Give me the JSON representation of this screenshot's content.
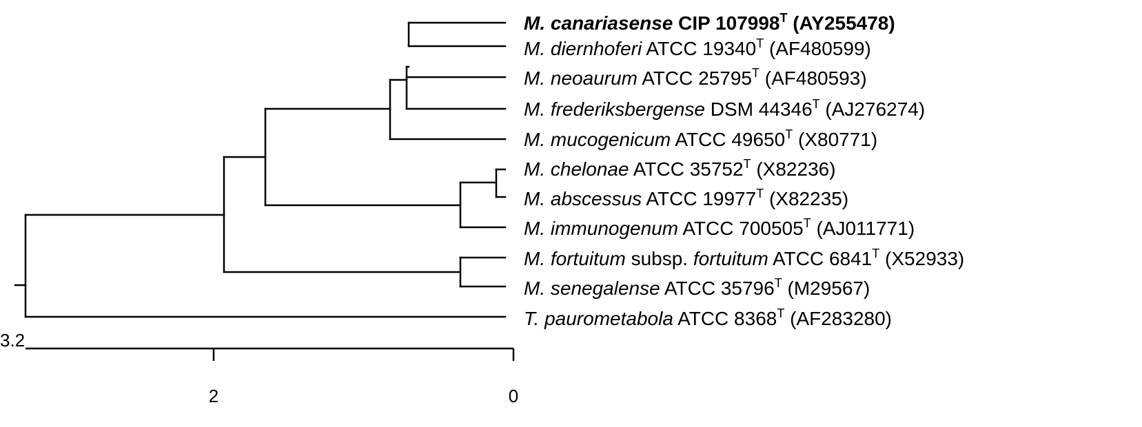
{
  "taxa": [
    {
      "id": "canariasense",
      "italic": "M. canariasense",
      "rest": "CIP 107998",
      "sup": "T",
      "acc": "(AY255478)",
      "bold": true
    },
    {
      "id": "diernhoferi",
      "italic": "M. diernhoferi",
      "rest": "ATCC 19340",
      "sup": "T",
      "acc": "(AF480599)"
    },
    {
      "id": "neoaurum",
      "italic": "M. neoaurum",
      "rest": "ATCC 25795",
      "sup": "T",
      "acc": "(AF480593)"
    },
    {
      "id": "frederiksbergense",
      "italic": "M. frederiksbergense",
      "rest": "DSM 44346",
      "sup": "T",
      "acc": "(AJ276274)"
    },
    {
      "id": "mucogenicum",
      "italic": "M. mucogenicum",
      "rest": "ATCC 49650",
      "sup": "T",
      "acc": "(X80771)"
    },
    {
      "id": "chelonae",
      "italic": "M. chelonae",
      "rest": "ATCC 35752",
      "sup": "T",
      "acc": "(X82236)"
    },
    {
      "id": "abscessus",
      "italic": "M. abscessus",
      "rest": "ATCC 19977",
      "sup": "T",
      "acc": "(X82235)"
    },
    {
      "id": "immunogenum",
      "italic": "M. immunogenum",
      "rest": "ATCC 700505",
      "sup": "T",
      "acc": "(AJ011771)"
    },
    {
      "id": "fortuitum",
      "italic": "M. fortuitum",
      "mid": "subsp.",
      "italic2": "fortuitum",
      "rest": "ATCC 6841",
      "sup": "T",
      "acc": "(X52933)"
    },
    {
      "id": "senegalense",
      "italic": "M. senegalense",
      "rest": "ATCC 35796",
      "sup": "T",
      "acc": "(M29567)"
    },
    {
      "id": "paurometabola",
      "italic": "T. paurometabola",
      "rest": "ATCC 8368",
      "sup": "T",
      "acc": "(AF283280)"
    }
  ],
  "scale": {
    "root_label": "3.2",
    "ticks": [
      {
        "value": 2,
        "label": "2"
      },
      {
        "value": 0,
        "label": "0"
      }
    ]
  }
}
